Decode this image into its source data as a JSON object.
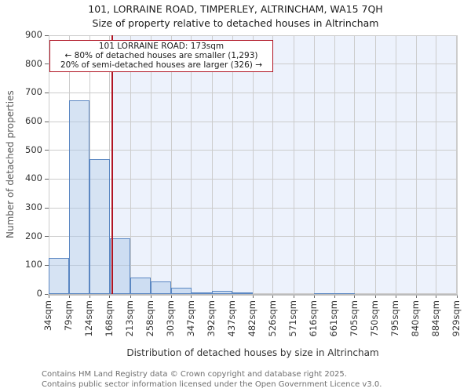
{
  "chart_data": {
    "type": "histogram",
    "title": "101, LORRAINE ROAD, TIMPERLEY, ALTRINCHAM, WA15 7QH",
    "subtitle": "Size of property relative to detached houses in Altrincham",
    "xlabel": "Distribution of detached houses by size in Altrincham",
    "ylabel": "Number of detached properties",
    "xlim": [
      34,
      929
    ],
    "ylim": [
      0,
      900
    ],
    "grid": true,
    "legend": "none",
    "bin_edges_sqm": [
      34,
      79,
      124,
      168,
      213,
      258,
      303,
      347,
      392,
      437,
      482,
      526,
      571,
      616,
      661,
      705,
      750,
      795,
      840,
      884,
      929
    ],
    "x_tick_labels": [
      "34sqm",
      "79sqm",
      "124sqm",
      "168sqm",
      "213sqm",
      "258sqm",
      "303sqm",
      "347sqm",
      "392sqm",
      "437sqm",
      "482sqm",
      "526sqm",
      "571sqm",
      "616sqm",
      "661sqm",
      "705sqm",
      "750sqm",
      "795sqm",
      "840sqm",
      "884sqm",
      "929sqm"
    ],
    "y_ticks": [
      0,
      100,
      200,
      300,
      400,
      500,
      600,
      700,
      800,
      900
    ],
    "values": [
      125,
      675,
      470,
      195,
      58,
      44,
      22,
      6,
      11,
      6,
      0,
      0,
      0,
      4,
      4,
      0,
      0,
      0,
      0,
      0
    ],
    "marker": {
      "value_sqm": 173,
      "label": "101 LORRAINE ROAD: 173sqm"
    }
  },
  "annotation": {
    "line1": "101 LORRAINE ROAD: 173sqm",
    "line2": "← 80% of detached houses are smaller (1,293)",
    "line3": "20% of semi-detached houses are larger (326) →"
  },
  "footer": {
    "line1": "Contains HM Land Registry data © Crown copyright and database right 2025.",
    "line2": "Contains public sector information licensed under the Open Government Licence v3.0."
  },
  "colors": {
    "bar_fill": "#aec7e8",
    "bar_edge": "#5b87c2",
    "grid": "#cccccc",
    "span_fill": "#edf2fc",
    "marker_line": "#b01423",
    "annotation_border": "#b01423",
    "axis_line": "#bcbcbc",
    "tick": "#666666"
  }
}
